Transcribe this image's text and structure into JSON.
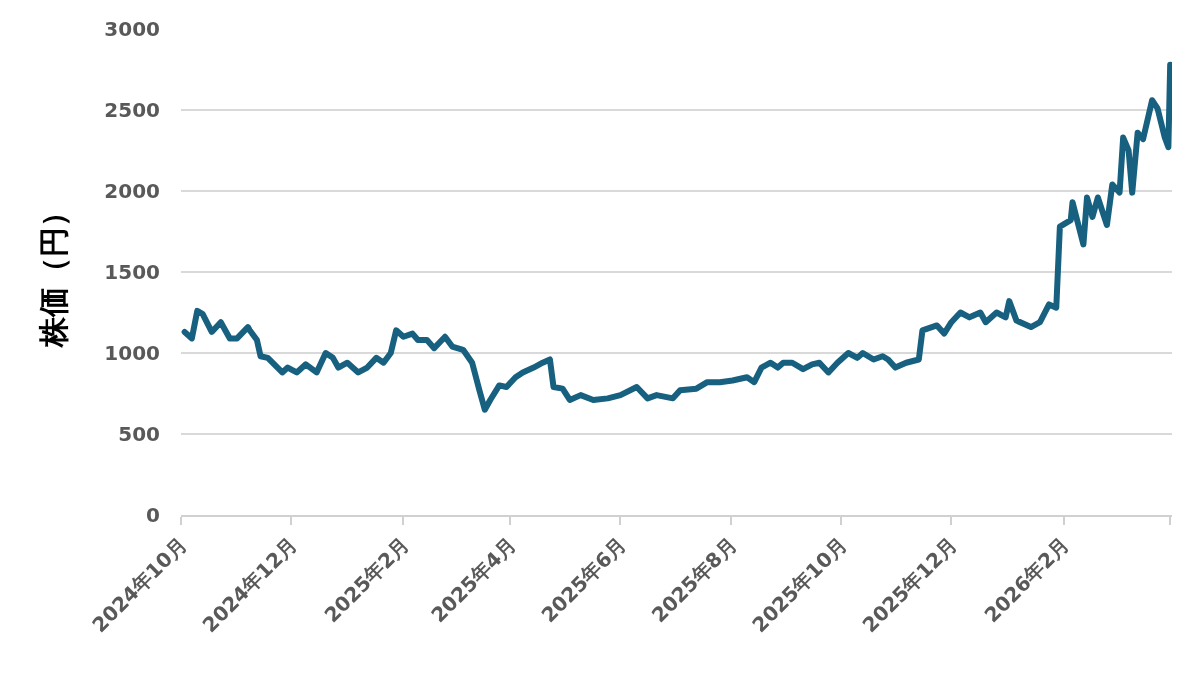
{
  "chart_data": {
    "type": "line",
    "ylabel": "株価（円）",
    "x": [
      "2024-10-03",
      "2024-10-07",
      "2024-10-10",
      "2024-10-13",
      "2024-10-18",
      "2024-10-23",
      "2024-10-28",
      "2024-11-01",
      "2024-11-07",
      "2024-11-08",
      "2024-11-12",
      "2024-11-14",
      "2024-11-18",
      "2024-11-26",
      "2024-11-29",
      "2024-12-04",
      "2024-12-09",
      "2024-12-15",
      "2024-12-20",
      "2024-12-24",
      "2024-12-27",
      "2025-01-01",
      "2025-01-07",
      "2025-01-12",
      "2025-01-17",
      "2025-01-21",
      "2025-01-25",
      "2025-01-28",
      "2025-02-01",
      "2025-02-06",
      "2025-02-09",
      "2025-02-14",
      "2025-02-18",
      "2025-02-24",
      "2025-02-28",
      "2025-03-06",
      "2025-03-11",
      "2025-03-15",
      "2025-03-18",
      "2025-03-21",
      "2025-03-26",
      "2025-03-30",
      "2025-04-04",
      "2025-04-08",
      "2025-04-14",
      "2025-04-19",
      "2025-04-23",
      "2025-04-25",
      "2025-04-30",
      "2025-05-04",
      "2025-05-10",
      "2025-05-17",
      "2025-05-25",
      "2025-06-01",
      "2025-06-10",
      "2025-06-16",
      "2025-06-21",
      "2025-06-30",
      "2025-07-04",
      "2025-07-13",
      "2025-07-19",
      "2025-07-26",
      "2025-08-02",
      "2025-08-10",
      "2025-08-14",
      "2025-08-18",
      "2025-08-23",
      "2025-08-27",
      "2025-08-30",
      "2025-09-04",
      "2025-09-10",
      "2025-09-15",
      "2025-09-19",
      "2025-09-24",
      "2025-09-29",
      "2025-10-05",
      "2025-10-10",
      "2025-10-13",
      "2025-10-19",
      "2025-10-24",
      "2025-10-27",
      "2025-10-31",
      "2025-11-06",
      "2025-11-13",
      "2025-11-15",
      "2025-11-23",
      "2025-11-27",
      "2025-12-01",
      "2025-12-06",
      "2025-12-11",
      "2025-12-17",
      "2025-12-20",
      "2025-12-26",
      "2025-12-31",
      "2026-01-02",
      "2026-01-06",
      "2026-01-14",
      "2026-01-19",
      "2026-01-24",
      "2026-01-28",
      "2026-01-30",
      "2026-02-05",
      "2026-02-06",
      "2026-02-12",
      "2026-02-14",
      "2026-02-17",
      "2026-02-20",
      "2026-02-25",
      "2026-02-28",
      "2026-03-04",
      "2026-03-06",
      "2026-03-09",
      "2026-03-11",
      "2026-03-14",
      "2026-03-17",
      "2026-03-22",
      "2026-03-25",
      "2026-03-29",
      "2026-03-31",
      "2026-04-01"
    ],
    "series": [
      {
        "color": "#17607f",
        "values": [
          1130,
          1090,
          1260,
          1240,
          1130,
          1190,
          1090,
          1090,
          1160,
          1140,
          1080,
          980,
          970,
          880,
          910,
          880,
          930,
          880,
          1000,
          970,
          910,
          940,
          880,
          910,
          970,
          940,
          1000,
          1140,
          1100,
          1120,
          1080,
          1080,
          1030,
          1100,
          1040,
          1020,
          940,
          770,
          650,
          710,
          800,
          790,
          850,
          880,
          910,
          940,
          960,
          790,
          780,
          710,
          740,
          710,
          720,
          740,
          790,
          720,
          740,
          720,
          770,
          780,
          820,
          820,
          830,
          850,
          820,
          910,
          940,
          910,
          940,
          940,
          900,
          930,
          940,
          880,
          940,
          1000,
          970,
          1000,
          960,
          980,
          960,
          910,
          940,
          960,
          1140,
          1170,
          1120,
          1190,
          1250,
          1220,
          1250,
          1190,
          1250,
          1220,
          1320,
          1200,
          1160,
          1190,
          1300,
          1280,
          1780,
          1820,
          1930,
          1670,
          1960,
          1840,
          1960,
          1790,
          2040,
          1990,
          2330,
          2250,
          1990,
          2360,
          2320,
          2560,
          2510,
          2330,
          2270,
          2780
        ]
      }
    ],
    "xlim": [
      "2024-10-01",
      "2026-04-02"
    ],
    "xticks": [
      {
        "value": "2024-10-01",
        "label": "2024年10月"
      },
      {
        "value": "2024-12-01",
        "label": "2024年12月"
      },
      {
        "value": "2025-02-01",
        "label": "2025年2月"
      },
      {
        "value": "2025-04-01",
        "label": "2025年4月"
      },
      {
        "value": "2025-06-01",
        "label": "2025年6月"
      },
      {
        "value": "2025-08-01",
        "label": "2025年8月"
      },
      {
        "value": "2025-10-01",
        "label": "2025年10月"
      },
      {
        "value": "2025-12-01",
        "label": "2025年12月"
      },
      {
        "value": "2026-02-01",
        "label": "2026年2月"
      },
      {
        "value": "2026-04-01",
        "label": null
      }
    ],
    "ylim": [
      0,
      3000
    ],
    "yticks": [
      0,
      500,
      1000,
      1500,
      2000,
      2500,
      3000
    ],
    "grid": "y",
    "marker": "none",
    "line_style": "solid"
  }
}
